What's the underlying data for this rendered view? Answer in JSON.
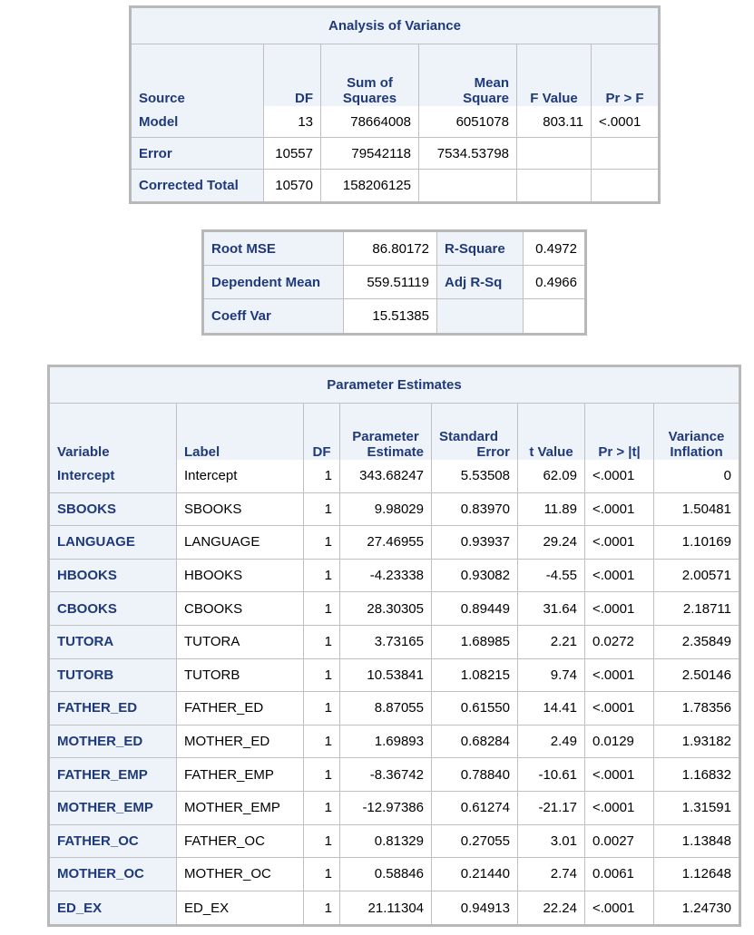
{
  "anova": {
    "title": "Analysis of Variance",
    "headers": {
      "source": "Source",
      "df": "DF",
      "ss1": "Sum of",
      "ss2": "Squares",
      "ms1": "Mean",
      "ms2": "Square",
      "f": "F Value",
      "p": "Pr > F"
    },
    "rows": [
      {
        "source": "Model",
        "df": "13",
        "ss": "78664008",
        "ms": "6051078",
        "f": "803.11",
        "p": "<.0001"
      },
      {
        "source": "Error",
        "df": "10557",
        "ss": "79542118",
        "ms": "7534.53798",
        "f": "",
        "p": ""
      },
      {
        "source": "Corrected Total",
        "df": "10570",
        "ss": "158206125",
        "ms": "",
        "f": "",
        "p": ""
      }
    ]
  },
  "fit": {
    "rows": [
      {
        "l1": "Root MSE",
        "v1": "86.80172",
        "l2": "R-Square",
        "v2": "0.4972"
      },
      {
        "l1": "Dependent Mean",
        "v1": "559.51119",
        "l2": "Adj R-Sq",
        "v2": "0.4966"
      },
      {
        "l1": "Coeff Var",
        "v1": "15.51385",
        "l2": "",
        "v2": ""
      }
    ]
  },
  "params": {
    "title": "Parameter Estimates",
    "headers": {
      "variable": "Variable",
      "label": "Label",
      "df": "DF",
      "est1": "Parameter",
      "est2": "Estimate",
      "se1": "Standard",
      "se2": "Error",
      "t": "t Value",
      "p": "Pr > |t|",
      "vif1": "Variance",
      "vif2": "Inflation"
    },
    "rows": [
      {
        "variable": "Intercept",
        "label": "Intercept",
        "df": "1",
        "est": "343.68247",
        "se": "5.53508",
        "t": "62.09",
        "p": "<.0001",
        "vif": "0"
      },
      {
        "variable": "SBOOKS",
        "label": "SBOOKS",
        "df": "1",
        "est": "9.98029",
        "se": "0.83970",
        "t": "11.89",
        "p": "<.0001",
        "vif": "1.50481"
      },
      {
        "variable": "LANGUAGE",
        "label": "LANGUAGE",
        "df": "1",
        "est": "27.46955",
        "se": "0.93937",
        "t": "29.24",
        "p": "<.0001",
        "vif": "1.10169"
      },
      {
        "variable": "HBOOKS",
        "label": "HBOOKS",
        "df": "1",
        "est": "-4.23338",
        "se": "0.93082",
        "t": "-4.55",
        "p": "<.0001",
        "vif": "2.00571"
      },
      {
        "variable": "CBOOKS",
        "label": "CBOOKS",
        "df": "1",
        "est": "28.30305",
        "se": "0.89449",
        "t": "31.64",
        "p": "<.0001",
        "vif": "2.18711"
      },
      {
        "variable": "TUTORA",
        "label": "TUTORA",
        "df": "1",
        "est": "3.73165",
        "se": "1.68985",
        "t": "2.21",
        "p": "0.0272",
        "vif": "2.35849"
      },
      {
        "variable": "TUTORB",
        "label": "TUTORB",
        "df": "1",
        "est": "10.53841",
        "se": "1.08215",
        "t": "9.74",
        "p": "<.0001",
        "vif": "2.50146"
      },
      {
        "variable": "FATHER_ED",
        "label": "FATHER_ED",
        "df": "1",
        "est": "8.87055",
        "se": "0.61550",
        "t": "14.41",
        "p": "<.0001",
        "vif": "1.78356"
      },
      {
        "variable": "MOTHER_ED",
        "label": "MOTHER_ED",
        "df": "1",
        "est": "1.69893",
        "se": "0.68284",
        "t": "2.49",
        "p": "0.0129",
        "vif": "1.93182"
      },
      {
        "variable": "FATHER_EMP",
        "label": "FATHER_EMP",
        "df": "1",
        "est": "-8.36742",
        "se": "0.78840",
        "t": "-10.61",
        "p": "<.0001",
        "vif": "1.16832"
      },
      {
        "variable": "MOTHER_EMP",
        "label": "MOTHER_EMP",
        "df": "1",
        "est": "-12.97386",
        "se": "0.61274",
        "t": "-21.17",
        "p": "<.0001",
        "vif": "1.31591"
      },
      {
        "variable": "FATHER_OC",
        "label": "FATHER_OC",
        "df": "1",
        "est": "0.81329",
        "se": "0.27055",
        "t": "3.01",
        "p": "0.0027",
        "vif": "1.13848"
      },
      {
        "variable": "MOTHER_OC",
        "label": "MOTHER_OC",
        "df": "1",
        "est": "0.58846",
        "se": "0.21440",
        "t": "2.74",
        "p": "0.0061",
        "vif": "1.12648"
      },
      {
        "variable": "ED_EX",
        "label": "ED_EX",
        "df": "1",
        "est": "21.11304",
        "se": "0.94913",
        "t": "22.24",
        "p": "<.0001",
        "vif": "1.24730"
      }
    ]
  }
}
